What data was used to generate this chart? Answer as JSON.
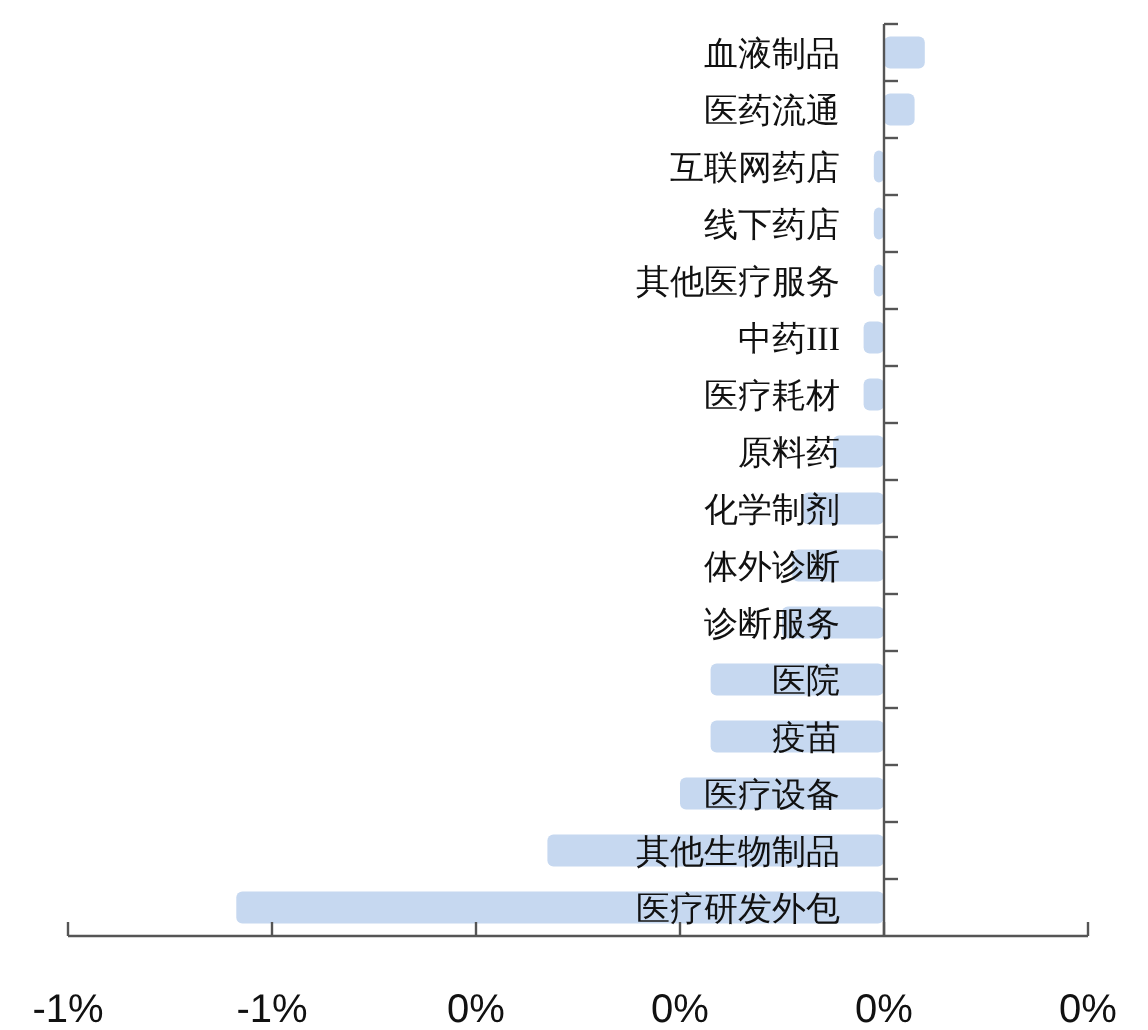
{
  "chart_data": {
    "type": "bar",
    "orientation": "horizontal",
    "categories": [
      "血液制品",
      "医药流通",
      "互联网药店",
      "线下药店",
      "其他医疗服务",
      "中药III",
      "医疗耗材",
      "原料药",
      "化学制剂",
      "体外诊断",
      "诊断服务",
      "医院",
      "疫苗",
      "医疗设备",
      "其他生物制品",
      "医疗研发外包"
    ],
    "values": [
      0.04,
      0.03,
      -0.01,
      -0.01,
      -0.01,
      -0.02,
      -0.02,
      -0.05,
      -0.08,
      -0.09,
      -0.1,
      -0.17,
      -0.17,
      -0.2,
      -0.33,
      -0.635
    ],
    "color": "#c6d8f0",
    "xlim": [
      -0.8,
      0.2
    ],
    "xticks": [
      {
        "value": -0.8,
        "label": "-1%"
      },
      {
        "value": -0.6,
        "label": "-1%"
      },
      {
        "value": -0.4,
        "label": "0%"
      },
      {
        "value": -0.2,
        "label": "0%"
      },
      {
        "value": 0,
        "label": "0%"
      },
      {
        "value": 0.2,
        "label": "0%"
      }
    ]
  }
}
